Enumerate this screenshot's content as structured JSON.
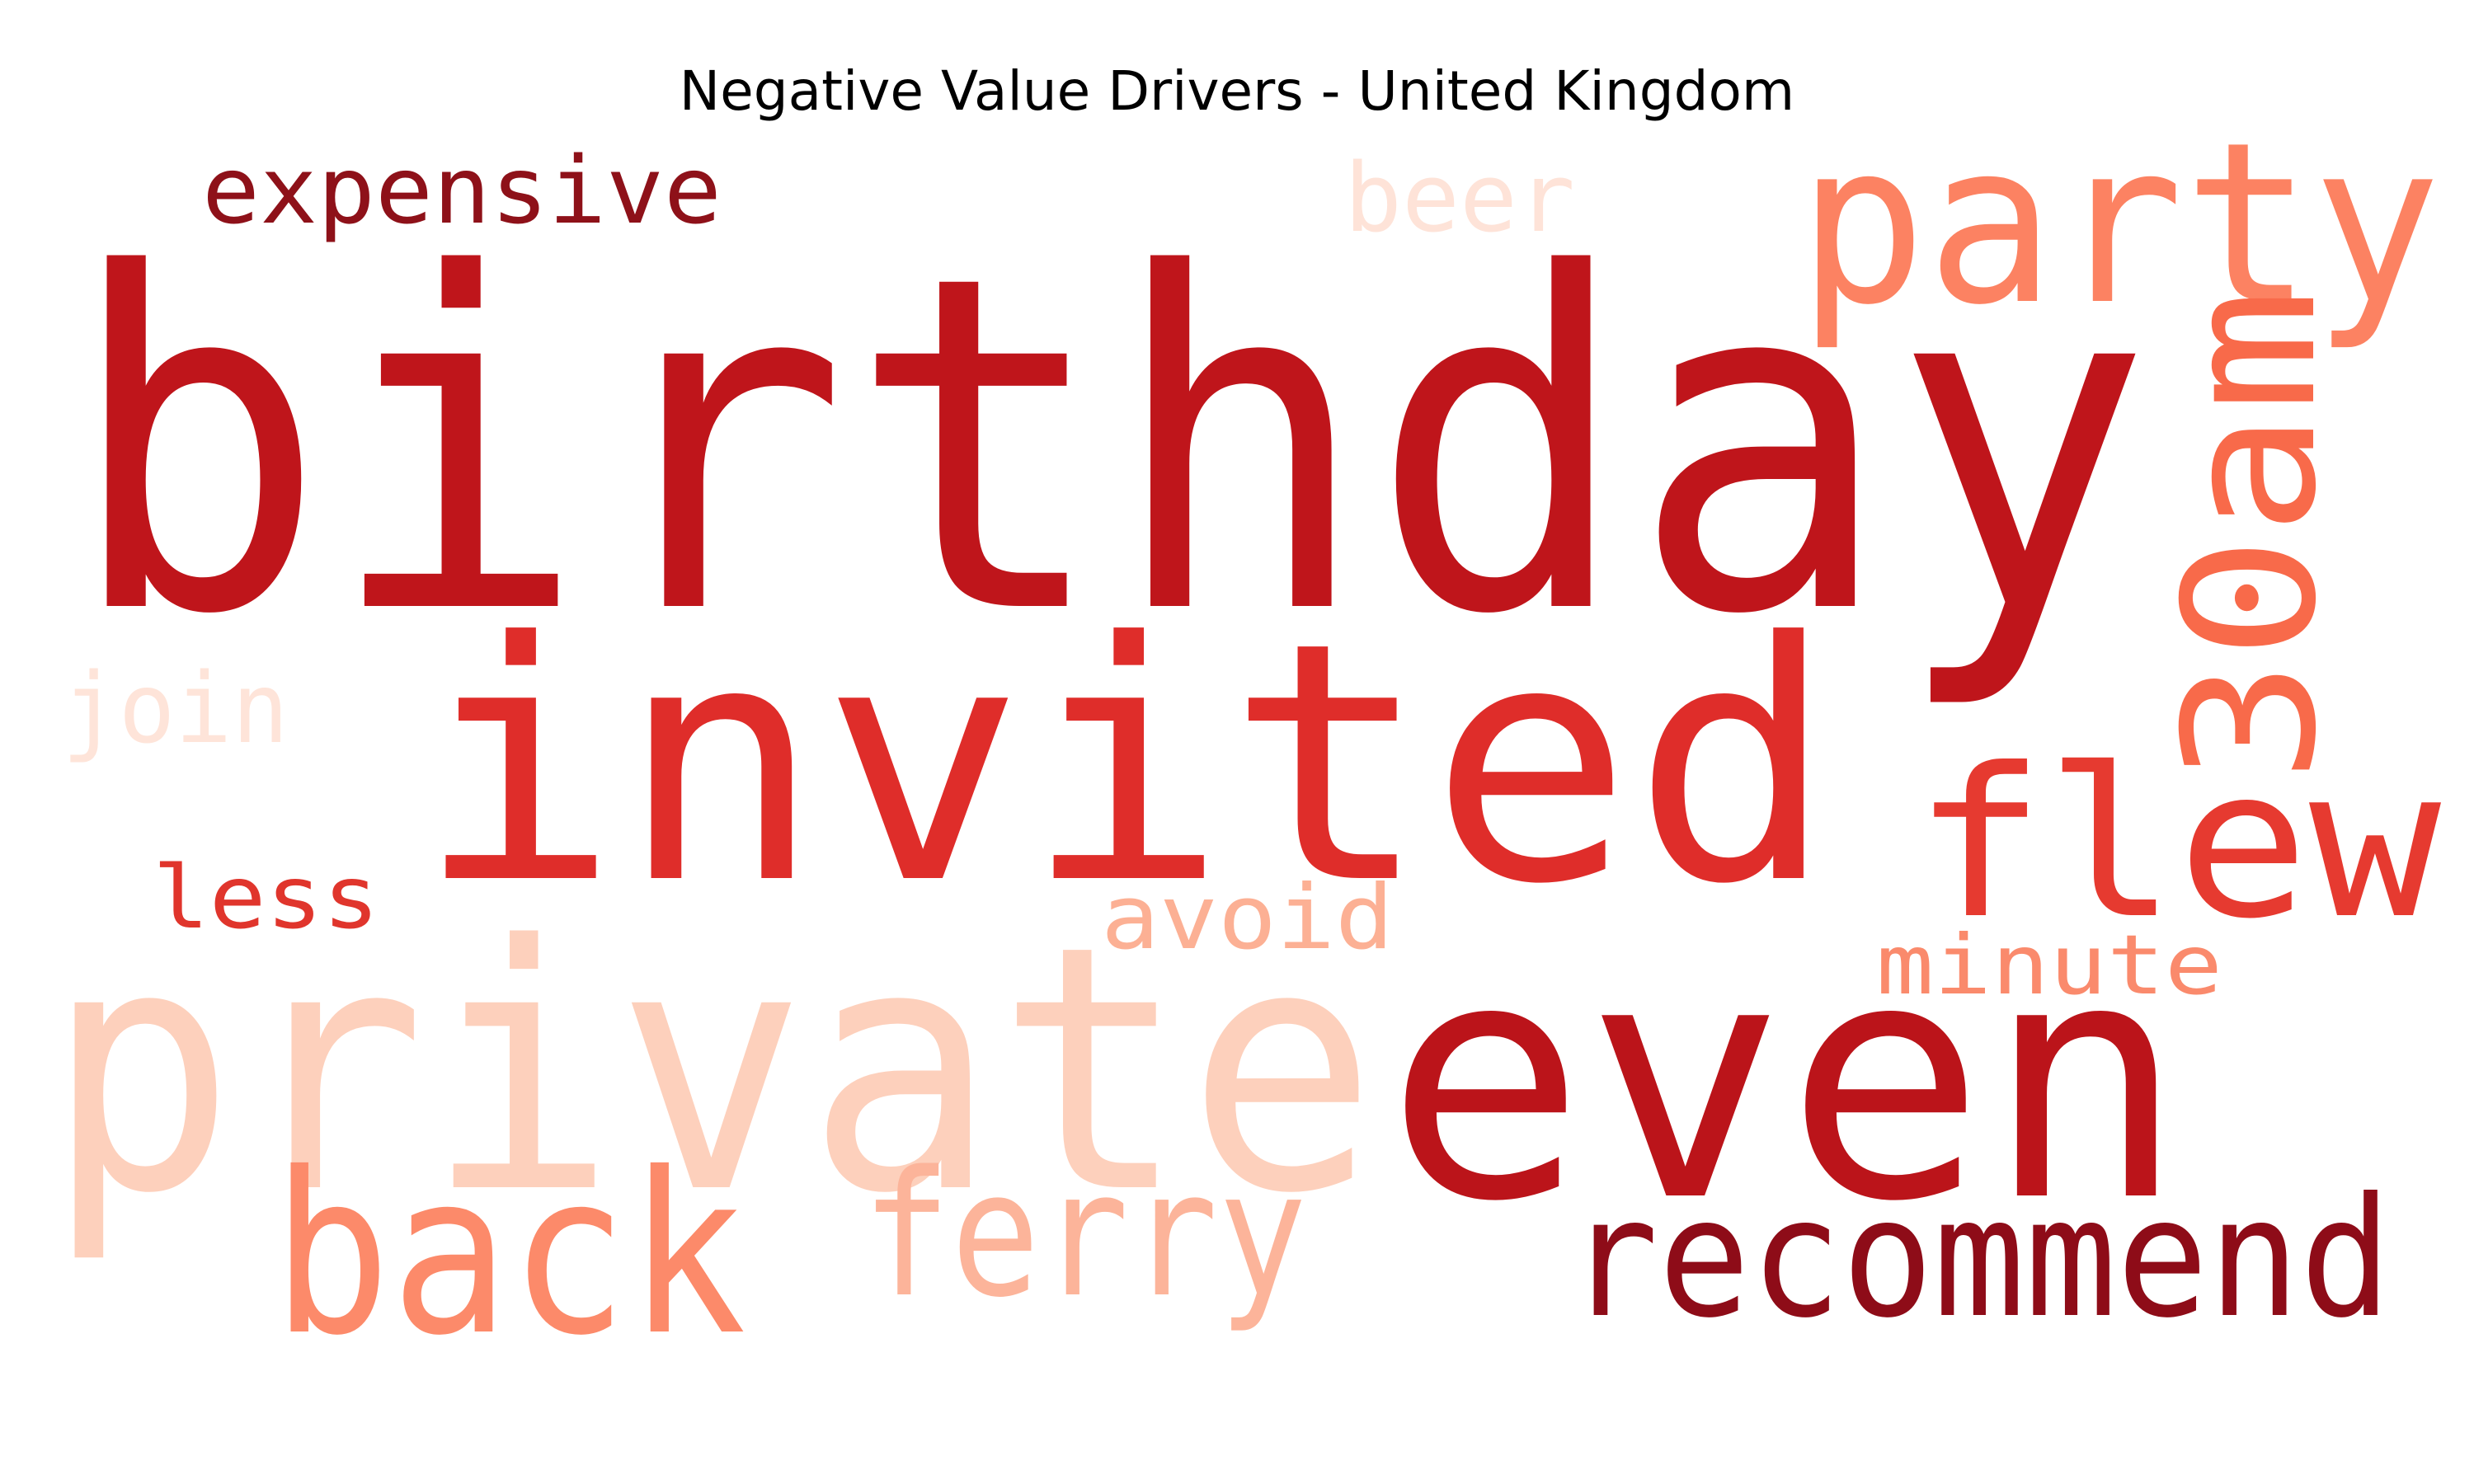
{
  "title": "Negative Value Drivers - United Kingdom",
  "words": [
    {
      "text": "birthday",
      "color": "#bf151b"
    },
    {
      "text": "invited",
      "color": "#df2d2a"
    },
    {
      "text": "private",
      "color": "#fdd0bc"
    },
    {
      "text": "even",
      "color": "#bb141a"
    },
    {
      "text": "party",
      "color": "#fc8262"
    },
    {
      "text": "back",
      "color": "#fc8a6a"
    },
    {
      "text": "30am",
      "color": "#f86a4a"
    },
    {
      "text": "flew",
      "color": "#e63a30"
    },
    {
      "text": "recommend",
      "color": "#8e0c18"
    },
    {
      "text": "ferry",
      "color": "#fcb49a"
    },
    {
      "text": "expensive",
      "color": "#8e1119"
    },
    {
      "text": "beer",
      "color": "#fee3d8"
    },
    {
      "text": "join",
      "color": "#fee4d9"
    },
    {
      "text": "less",
      "color": "#e0352c"
    },
    {
      "text": "avoid",
      "color": "#fcb094"
    },
    {
      "text": "minute",
      "color": "#fa8a6c"
    }
  ]
}
